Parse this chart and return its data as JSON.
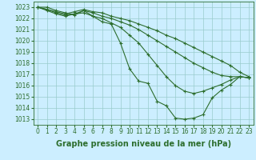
{
  "bg_color": "#cceeff",
  "grid_color": "#99cccc",
  "line_color": "#2d6e2d",
  "xlim": [
    -0.5,
    23.5
  ],
  "ylim": [
    1012.5,
    1023.5
  ],
  "yticks": [
    1013,
    1014,
    1015,
    1016,
    1017,
    1018,
    1019,
    1020,
    1021,
    1022,
    1023
  ],
  "xticks": [
    0,
    1,
    2,
    3,
    4,
    5,
    6,
    7,
    8,
    9,
    10,
    11,
    12,
    13,
    14,
    15,
    16,
    17,
    18,
    19,
    20,
    21,
    22,
    23
  ],
  "lines": [
    {
      "x": [
        0,
        1,
        2,
        3,
        4,
        5,
        6,
        7,
        8,
        9,
        10,
        11,
        12,
        13,
        14,
        15,
        16,
        17,
        18,
        19,
        20,
        21,
        22,
        23
      ],
      "y": [
        1023.0,
        1023.0,
        1022.7,
        1022.5,
        1022.3,
        1022.7,
        1022.2,
        1021.7,
        1021.5,
        1019.8,
        1017.5,
        1016.4,
        1016.2,
        1014.6,
        1014.2,
        1013.1,
        1013.0,
        1013.1,
        1013.4,
        1014.9,
        1015.6,
        1016.1,
        1016.8,
        1016.7
      ]
    },
    {
      "x": [
        0,
        1,
        2,
        3,
        4,
        5,
        6,
        7,
        8,
        9,
        10,
        11,
        12,
        13,
        14,
        15,
        16,
        17,
        18,
        19,
        20,
        21,
        22,
        23
      ],
      "y": [
        1023.0,
        1022.8,
        1022.5,
        1022.3,
        1022.4,
        1022.5,
        1022.2,
        1022.0,
        1021.6,
        1021.2,
        1020.5,
        1019.8,
        1018.8,
        1017.8,
        1016.8,
        1016.0,
        1015.5,
        1015.3,
        1015.5,
        1015.8,
        1016.1,
        1016.5,
        1016.8,
        1016.7
      ]
    },
    {
      "x": [
        0,
        1,
        2,
        3,
        4,
        5,
        6,
        7,
        8,
        9,
        10,
        11,
        12,
        13,
        14,
        15,
        16,
        17,
        18,
        19,
        20,
        21,
        22,
        23
      ],
      "y": [
        1023.0,
        1022.7,
        1022.4,
        1022.2,
        1022.4,
        1022.7,
        1022.5,
        1022.2,
        1022.0,
        1021.7,
        1021.4,
        1021.0,
        1020.5,
        1020.0,
        1019.5,
        1019.0,
        1018.5,
        1018.0,
        1017.6,
        1017.2,
        1016.9,
        1016.8,
        1016.8,
        1016.7
      ]
    },
    {
      "x": [
        0,
        1,
        2,
        3,
        4,
        5,
        6,
        7,
        8,
        9,
        10,
        11,
        12,
        13,
        14,
        15,
        16,
        17,
        18,
        19,
        20,
        21,
        22,
        23
      ],
      "y": [
        1023.0,
        1022.8,
        1022.6,
        1022.4,
        1022.6,
        1022.8,
        1022.6,
        1022.5,
        1022.2,
        1022.0,
        1021.8,
        1021.5,
        1021.2,
        1020.9,
        1020.5,
        1020.2,
        1019.8,
        1019.4,
        1019.0,
        1018.6,
        1018.2,
        1017.8,
        1017.2,
        1016.8
      ]
    }
  ],
  "xlabel": "Graphe pression niveau de la mer (hPa)",
  "xlabel_fontsize": 7,
  "ytick_fontsize": 5.5,
  "xtick_fontsize": 5.5,
  "figsize": [
    3.2,
    2.0
  ],
  "dpi": 100
}
